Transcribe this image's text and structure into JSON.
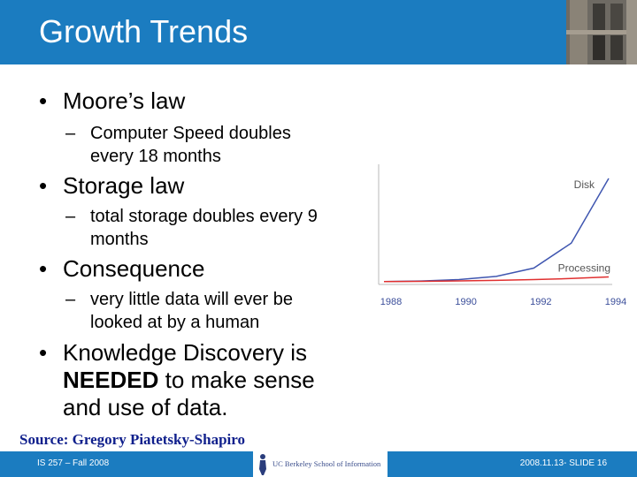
{
  "slide": {
    "title": "Growth Trends",
    "bullets": [
      {
        "text": "Moore’s law",
        "subs": [
          "Computer Speed doubles",
          "every 18 months"
        ]
      },
      {
        "text": "Storage law",
        "subs": [
          "total storage doubles every 9",
          "months"
        ]
      },
      {
        "text": "Consequence",
        "subs": [
          "very little data will ever be",
          "looked at by a human"
        ]
      },
      {
        "text_lines": [
          "Knowledge Discovery is",
          "to make sense",
          "and use of data."
        ],
        "bold_word": "NEEDED"
      }
    ],
    "bullet_glyph": "•",
    "dash_glyph": "–",
    "source": "Source: Gregory Piatetsky-Shapiro"
  },
  "footer": {
    "left": "IS 257 – Fall 2008",
    "logo_text": "UC Berkeley School of Information",
    "right": "2008.11.13- SLIDE 16"
  },
  "chart_data": {
    "type": "line",
    "x": [
      1988,
      1989,
      1990,
      1991,
      1992,
      1993,
      1994
    ],
    "xticks": [
      "1988",
      "1990",
      "1992",
      "1994"
    ],
    "series": [
      {
        "name": "Disk",
        "label": "Disk",
        "color": "#3f56b0",
        "values": [
          1,
          1.6,
          3,
          6,
          14,
          38,
          100
        ]
      },
      {
        "name": "Processing",
        "label": "Processing",
        "color": "#e03030",
        "values": [
          1,
          1.3,
          1.7,
          2.2,
          3,
          4,
          5.5
        ]
      }
    ],
    "ylim": [
      0,
      100
    ],
    "grid": false,
    "legend": "inline-labels"
  },
  "colors": {
    "header": "#1b7cc0",
    "source": "#0f1f8c"
  }
}
